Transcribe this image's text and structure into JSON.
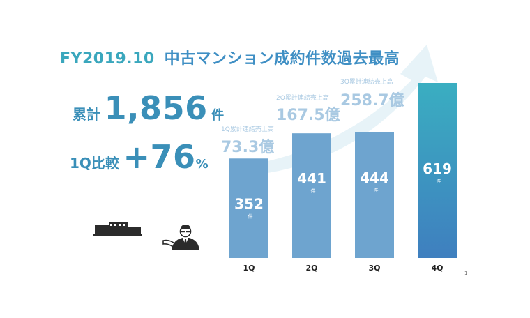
{
  "header": {
    "fy": "FY2019.10",
    "title": "中古マンション成約件数過去最高"
  },
  "stats": {
    "total_label": "累計",
    "total_value": "1,856",
    "total_unit": "件",
    "compare_label": "1Q比較",
    "compare_value": "+76",
    "compare_unit": "%"
  },
  "page_number": "1",
  "icons": [
    "office-buildings-icon",
    "businessman-icon"
  ],
  "colors": {
    "bar": "#6ea4cf",
    "bar_highlight_top": "#3aaec1",
    "bar_highlight_bottom": "#3f7fbf",
    "annotation": "#a9c9e2",
    "accent": "#3a8fb8"
  },
  "chart_data": {
    "type": "bar",
    "categories": [
      "1Q",
      "2Q",
      "3Q",
      "4Q"
    ],
    "values": [
      352,
      441,
      444,
      619
    ],
    "value_unit": "件",
    "annotations": [
      {
        "label": "1Q累計連結売上高",
        "value": "73.3億"
      },
      {
        "label": "2Q累計連結売上高",
        "value": "167.5億"
      },
      {
        "label": "3Q累計連結売上高",
        "value": "258.7億"
      }
    ]
  }
}
